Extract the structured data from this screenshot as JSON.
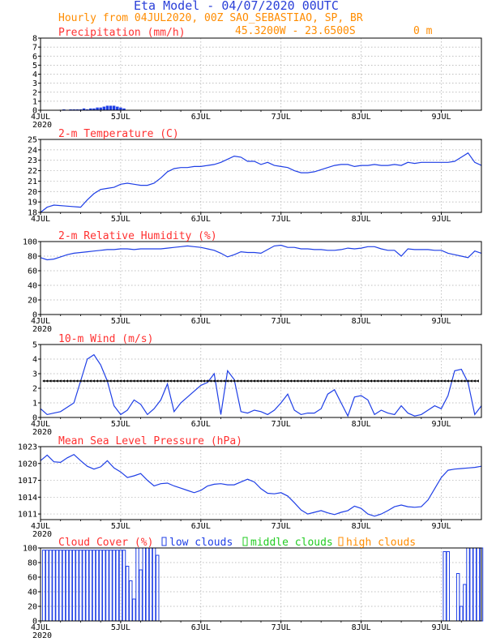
{
  "header": {
    "title": "Eta Model - 04/07/2020 00UTC",
    "subtitle": "Hourly from 04JUL2020, 00Z  SAO_SEBASTIAO, SP, BR",
    "coords": "45.3200W - 23.6500S",
    "elevation": "0  m"
  },
  "x_axis": {
    "labels": [
      "4JUL",
      "5JUL",
      "6JUL",
      "7JUL",
      "8JUL",
      "9JUL"
    ],
    "year": "2020",
    "hours_range": [
      0,
      132
    ]
  },
  "colors": {
    "title": "#ff3030",
    "header_blue": "#2a3fd8",
    "header_orange": "#ff8c00",
    "series": "#1f3fe6",
    "low_clouds": "#1f3fe6",
    "middle_clouds": "#22cc22",
    "high_clouds": "#ff8c00"
  },
  "chart_data": [
    {
      "type": "bar",
      "title": "Precipitation (mm/h)",
      "ylim": [
        0,
        8
      ],
      "yticks": [
        "0",
        "1",
        "2",
        "3",
        "4",
        "5",
        "6",
        "7",
        "8"
      ],
      "x": [
        6,
        7,
        8,
        9,
        10,
        11,
        12,
        13,
        14,
        15,
        16,
        17,
        18,
        19,
        20,
        21,
        22,
        23,
        24,
        25
      ],
      "values": [
        0.05,
        0.1,
        0.05,
        0.1,
        0.1,
        0.1,
        0.1,
        0.2,
        0.1,
        0.2,
        0.2,
        0.3,
        0.3,
        0.4,
        0.5,
        0.5,
        0.5,
        0.4,
        0.3,
        0.2
      ]
    },
    {
      "type": "line",
      "title": "2-m Temperature (C)",
      "ylim": [
        18,
        25
      ],
      "yticks": [
        "18",
        "19",
        "20",
        "21",
        "22",
        "23",
        "24",
        "25"
      ],
      "x": [
        0,
        2,
        4,
        8,
        12,
        14,
        16,
        18,
        20,
        22,
        24,
        26,
        28,
        30,
        32,
        34,
        36,
        38,
        40,
        42,
        44,
        46,
        48,
        50,
        52,
        54,
        56,
        58,
        60,
        62,
        64,
        66,
        68,
        70,
        72,
        74,
        76,
        78,
        80,
        82,
        84,
        86,
        88,
        90,
        92,
        94,
        96,
        98,
        100,
        102,
        104,
        106,
        108,
        110,
        112,
        114,
        116,
        118,
        120,
        122,
        124,
        126,
        128,
        130,
        132
      ],
      "values": [
        18.0,
        18.5,
        18.7,
        18.6,
        18.5,
        19.2,
        19.8,
        20.2,
        20.3,
        20.4,
        20.7,
        20.8,
        20.7,
        20.6,
        20.6,
        20.8,
        21.3,
        21.9,
        22.2,
        22.3,
        22.3,
        22.4,
        22.4,
        22.5,
        22.6,
        22.8,
        23.1,
        23.4,
        23.3,
        22.9,
        22.9,
        22.6,
        22.8,
        22.5,
        22.4,
        22.3,
        22.0,
        21.8,
        21.8,
        21.9,
        22.1,
        22.3,
        22.5,
        22.6,
        22.6,
        22.4,
        22.5,
        22.5,
        22.6,
        22.5,
        22.5,
        22.6,
        22.5,
        22.8,
        22.7,
        22.8,
        22.8,
        22.8,
        22.8,
        22.8,
        22.9,
        23.3,
        23.7,
        22.8,
        22.5
      ]
    },
    {
      "type": "line",
      "title": "2-m Relative Humidity (%)",
      "ylim": [
        0,
        100
      ],
      "yticks": [
        "0",
        "20",
        "40",
        "60",
        "80",
        "100"
      ],
      "x": [
        0,
        2,
        4,
        6,
        8,
        10,
        12,
        14,
        16,
        18,
        20,
        22,
        24,
        26,
        28,
        30,
        32,
        34,
        36,
        38,
        40,
        42,
        44,
        46,
        48,
        50,
        52,
        54,
        56,
        58,
        60,
        62,
        64,
        66,
        68,
        70,
        72,
        74,
        76,
        78,
        80,
        82,
        84,
        86,
        88,
        90,
        92,
        94,
        96,
        98,
        100,
        102,
        104,
        106,
        108,
        110,
        112,
        114,
        116,
        118,
        120,
        122,
        124,
        126,
        128,
        130,
        132
      ],
      "values": [
        78,
        75,
        76,
        79,
        82,
        84,
        85,
        86,
        87,
        88,
        89,
        89,
        90,
        90,
        89,
        90,
        90,
        90,
        90,
        91,
        92,
        93,
        94,
        93,
        92,
        90,
        88,
        84,
        79,
        82,
        86,
        85,
        85,
        84,
        89,
        94,
        95,
        92,
        92,
        90,
        90,
        89,
        89,
        88,
        88,
        89,
        91,
        90,
        91,
        93,
        93,
        90,
        88,
        88,
        80,
        90,
        89,
        89,
        89,
        88,
        88,
        84,
        82,
        80,
        78,
        87,
        84
      ]
    },
    {
      "type": "line",
      "title": "10-m Wind (m/s)",
      "ylim": [
        0,
        5
      ],
      "yticks": [
        "0",
        "1",
        "2",
        "3",
        "4",
        "5"
      ],
      "x": [
        0,
        2,
        4,
        6,
        8,
        10,
        12,
        14,
        16,
        18,
        20,
        22,
        24,
        26,
        28,
        30,
        32,
        34,
        36,
        38,
        40,
        42,
        44,
        46,
        48,
        50,
        52,
        54,
        56,
        58,
        60,
        62,
        64,
        66,
        68,
        70,
        72,
        74,
        76,
        78,
        80,
        82,
        84,
        86,
        88,
        90,
        92,
        94,
        96,
        98,
        100,
        102,
        104,
        106,
        108,
        110,
        112,
        114,
        116,
        118,
        120,
        122,
        124,
        126,
        128,
        130,
        132
      ],
      "values": [
        0.6,
        0.2,
        0.3,
        0.4,
        0.7,
        1.0,
        2.5,
        4.0,
        4.3,
        3.6,
        2.5,
        0.8,
        0.2,
        0.5,
        1.2,
        0.9,
        0.2,
        0.6,
        1.2,
        2.3,
        0.4,
        1.0,
        1.4,
        1.8,
        2.2,
        2.4,
        3.0,
        0.2,
        3.2,
        2.6,
        0.4,
        0.3,
        0.5,
        0.4,
        0.2,
        0.5,
        1.0,
        1.6,
        0.5,
        0.2,
        0.3,
        0.3,
        0.6,
        1.6,
        1.9,
        1.0,
        0.1,
        1.4,
        1.5,
        1.2,
        0.2,
        0.5,
        0.3,
        0.2,
        0.8,
        0.3,
        0.1,
        0.2,
        0.5,
        0.8,
        0.6,
        1.5,
        3.2,
        3.3,
        2.4,
        0.2,
        0.8
      ],
      "barbs_level": 2.5
    },
    {
      "type": "line",
      "title": "Mean Sea Level Pressure (hPa)",
      "ylim": [
        1010,
        1023
      ],
      "yticks": [
        "1011",
        "1014",
        "1017",
        "1020",
        "1023"
      ],
      "x": [
        0,
        2,
        4,
        6,
        8,
        10,
        12,
        14,
        16,
        18,
        20,
        22,
        24,
        26,
        28,
        30,
        32,
        34,
        36,
        38,
        40,
        42,
        44,
        46,
        48,
        50,
        52,
        54,
        56,
        58,
        60,
        62,
        64,
        66,
        68,
        70,
        72,
        74,
        76,
        78,
        80,
        82,
        84,
        86,
        88,
        90,
        92,
        94,
        96,
        98,
        100,
        102,
        104,
        106,
        108,
        110,
        112,
        114,
        116,
        118,
        120,
        122,
        124,
        126,
        128,
        130,
        132
      ],
      "values": [
        1020.5,
        1021.5,
        1020.3,
        1020.2,
        1021.0,
        1021.6,
        1020.5,
        1019.5,
        1019.0,
        1019.4,
        1020.5,
        1019.2,
        1018.5,
        1017.5,
        1017.8,
        1018.2,
        1017.0,
        1016.0,
        1016.4,
        1016.5,
        1016.0,
        1015.6,
        1015.2,
        1014.8,
        1015.2,
        1016.0,
        1016.3,
        1016.4,
        1016.2,
        1016.2,
        1016.7,
        1017.2,
        1016.7,
        1015.5,
        1014.7,
        1014.6,
        1014.8,
        1014.2,
        1013.0,
        1011.7,
        1011.0,
        1011.3,
        1011.6,
        1011.2,
        1010.9,
        1011.3,
        1011.6,
        1012.4,
        1012.0,
        1011.0,
        1010.6,
        1011.0,
        1011.6,
        1012.3,
        1012.6,
        1012.3,
        1012.2,
        1012.3,
        1013.5,
        1015.5,
        1017.5,
        1018.8,
        1019.0,
        1019.1,
        1019.2,
        1019.3,
        1019.5
      ]
    },
    {
      "type": "bar",
      "title": "Cloud Cover (%)",
      "ylim": [
        0,
        100
      ],
      "yticks": [
        "0",
        "20",
        "40",
        "60",
        "80",
        "100"
      ],
      "legend": [
        "low clouds",
        "middle clouds",
        "high clouds"
      ],
      "x": [
        1,
        2,
        3,
        4,
        5,
        6,
        7,
        8,
        9,
        10,
        11,
        12,
        13,
        14,
        15,
        16,
        17,
        18,
        19,
        20,
        21,
        22,
        23,
        24,
        25,
        26,
        27,
        28,
        29,
        30,
        31,
        32,
        33,
        34,
        35,
        121,
        122,
        125,
        126,
        127,
        128,
        129,
        130,
        131,
        132
      ],
      "values": [
        97,
        97,
        97,
        97,
        97,
        97,
        97,
        97,
        97,
        97,
        97,
        97,
        97,
        97,
        97,
        97,
        97,
        97,
        97,
        97,
        97,
        97,
        97,
        97,
        97,
        75,
        55,
        30,
        100,
        70,
        100,
        100,
        100,
        100,
        90,
        95,
        95,
        65,
        20,
        50,
        100,
        100,
        100,
        100,
        100
      ]
    }
  ]
}
